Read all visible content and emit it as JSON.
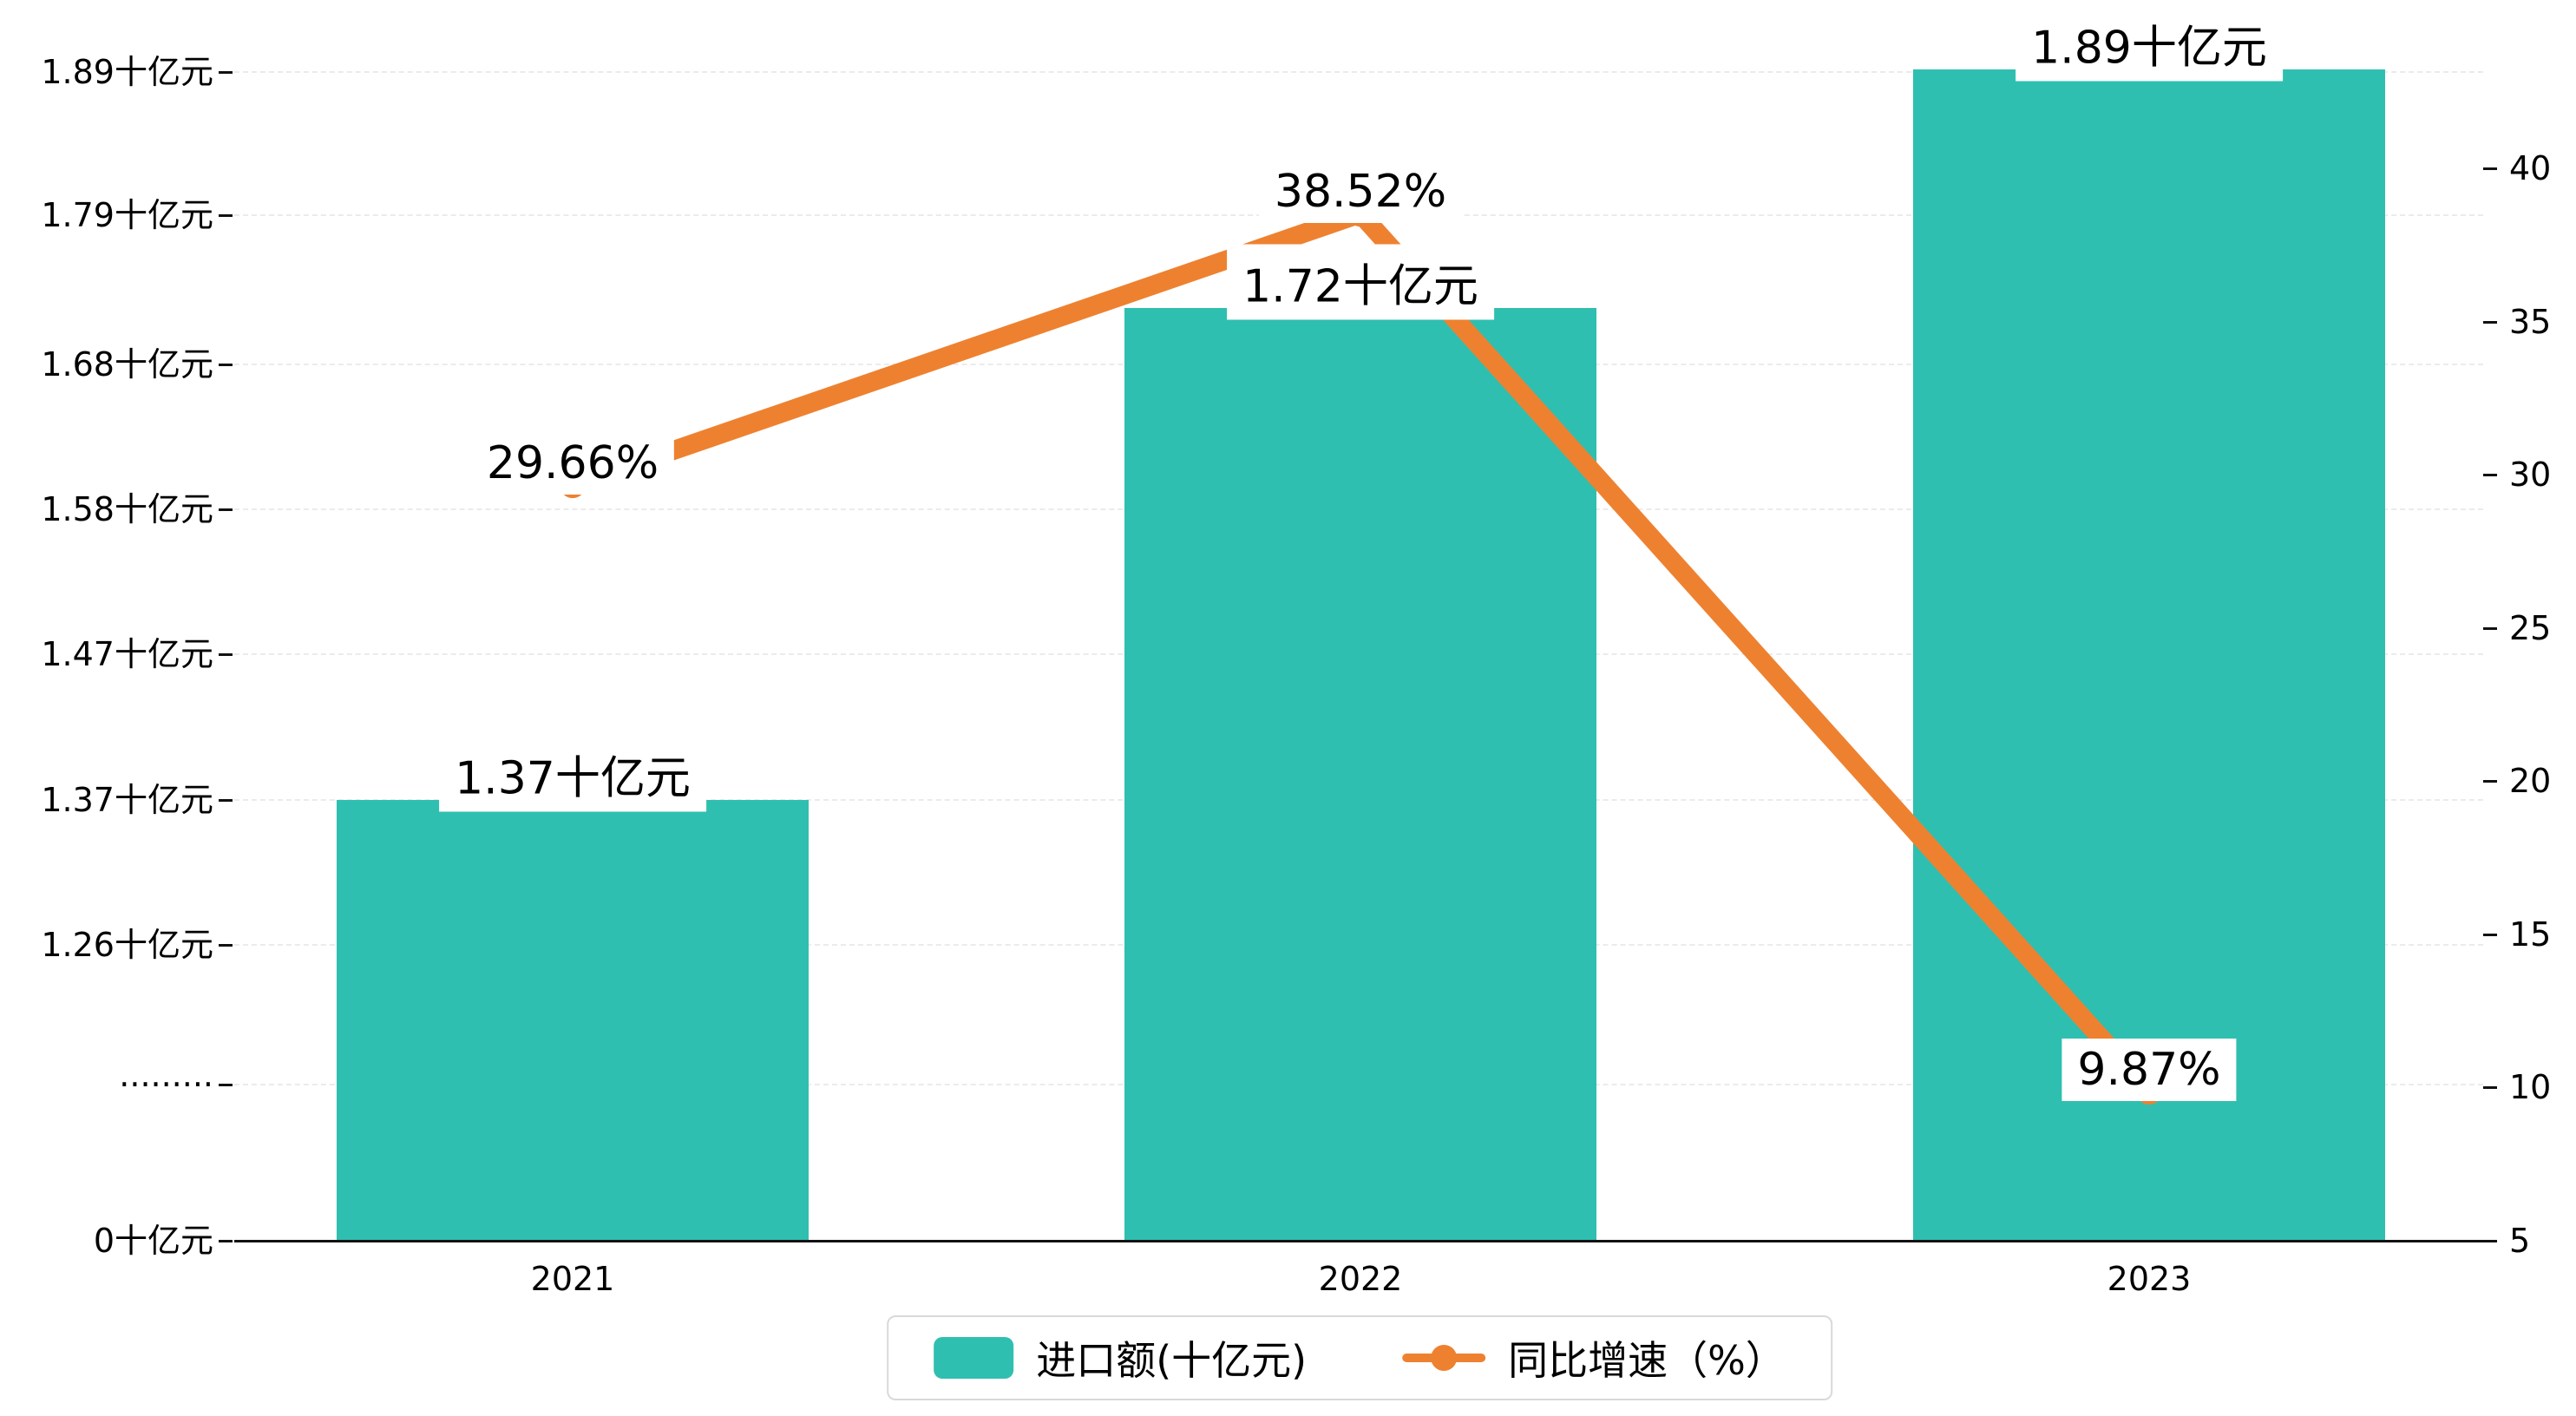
{
  "chart_data": {
    "type": "bar+line",
    "title": "",
    "categories": [
      "2021",
      "2022",
      "2023"
    ],
    "series": [
      {
        "name": "进口额(十亿元)",
        "type": "bar",
        "axis": "left",
        "values": [
          1.37,
          1.72,
          1.89
        ],
        "point_labels": [
          "1.37十亿元",
          "1.72十亿元",
          "1.89十亿元"
        ],
        "color": "#2fbfb0"
      },
      {
        "name": "同比增速（%）",
        "type": "line",
        "axis": "right",
        "values": [
          29.66,
          38.52,
          9.87
        ],
        "point_labels": [
          "29.66%",
          "38.52%",
          "9.87%"
        ],
        "color": "#ee8130"
      }
    ],
    "left_axis": {
      "tick_labels": [
        "1.89十亿元",
        "1.79十亿元",
        "1.68十亿元",
        "1.58十亿元",
        "1.47十亿元",
        "1.37十亿元",
        "1.26十亿元",
        "·········",
        "0十亿元"
      ],
      "broken_axis": true
    },
    "right_axis": {
      "tick_labels": [
        "40",
        "35",
        "30",
        "25",
        "20",
        "15",
        "10",
        "5"
      ],
      "min": 5,
      "max": 40
    },
    "x_axis": {
      "tick_labels": [
        "2021",
        "2022",
        "2023"
      ]
    },
    "legend": {
      "position": "bottom",
      "items": [
        "进口额(十亿元)",
        "同比增速（%）"
      ]
    },
    "grid": "dashed-horizontal",
    "colors": {
      "bar": "#2fbfb0",
      "line": "#ee8130",
      "background": "#ffffff",
      "gridline": "#ebebeb",
      "axis": "#111111"
    }
  }
}
